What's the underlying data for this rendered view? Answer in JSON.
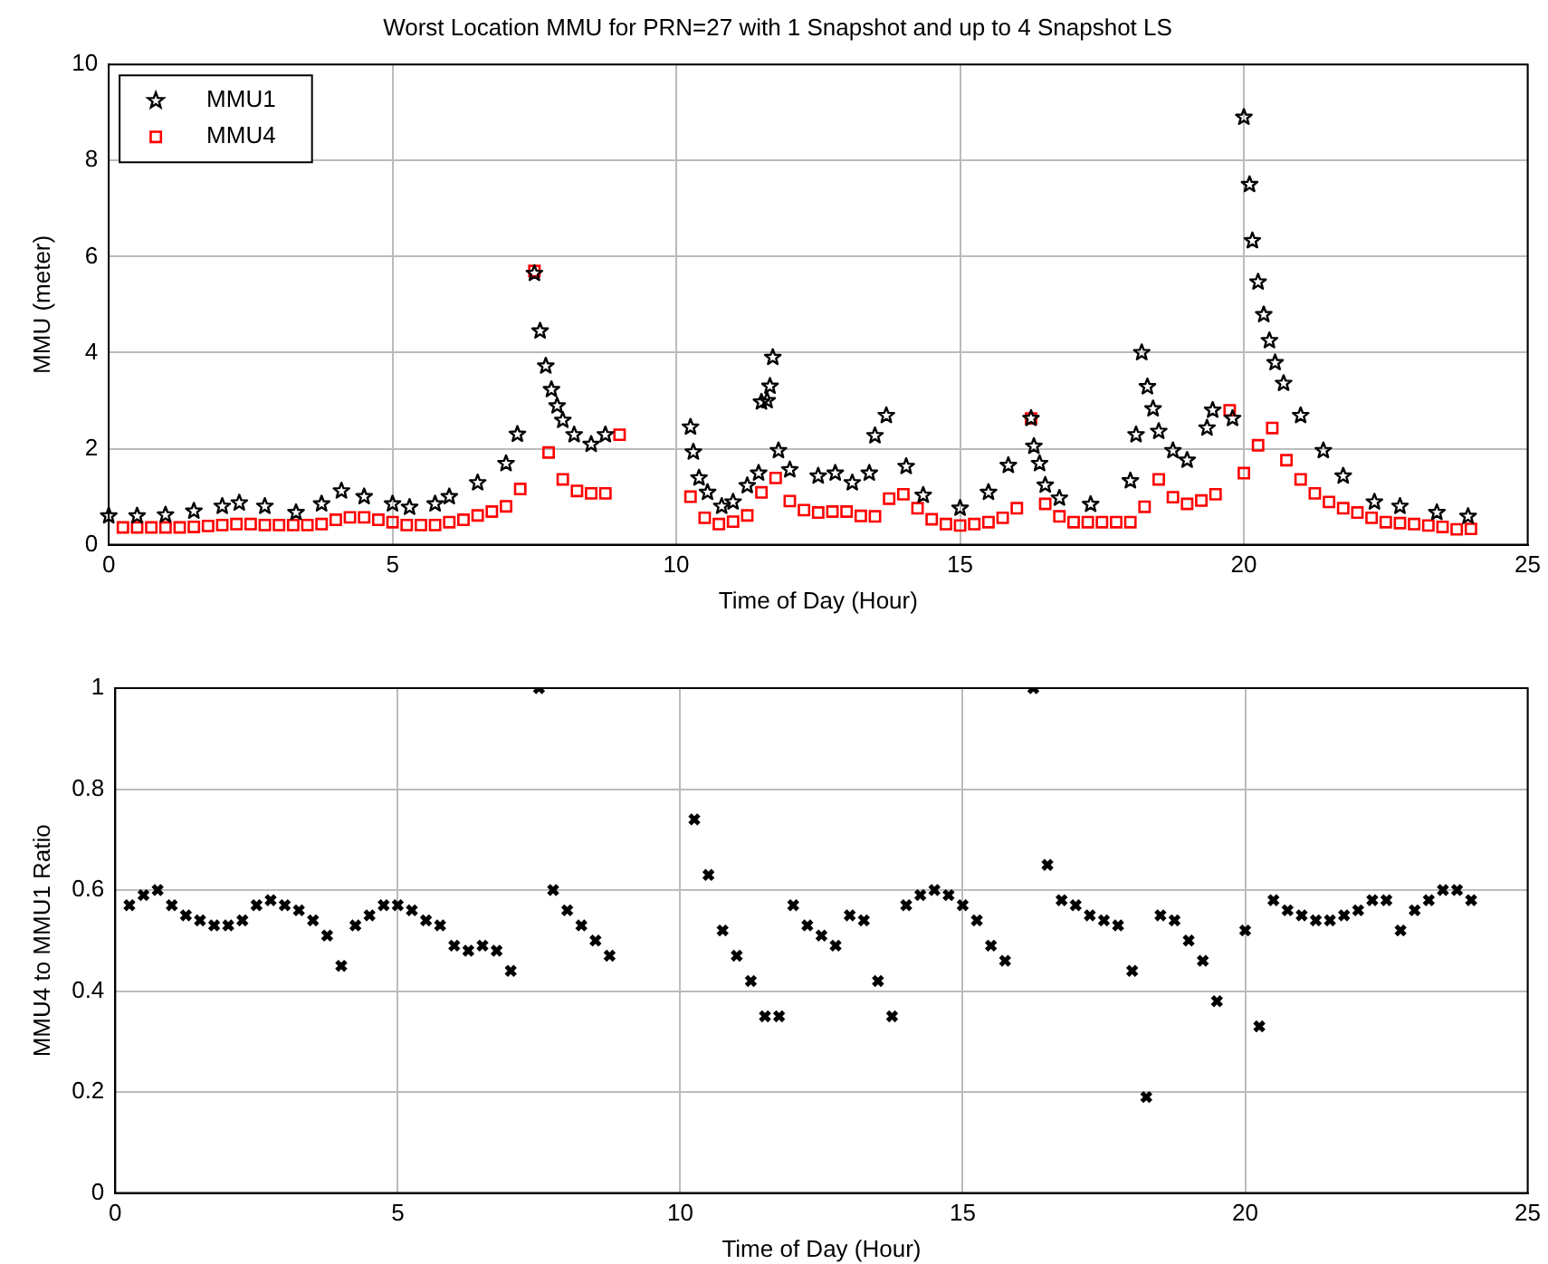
{
  "chart_data": [
    {
      "type": "scatter",
      "title": "Worst Location MMU for PRN=27 with 1 Snapshot and up to 4 Snapshot LS",
      "xlabel": "Time of Day (Hour)",
      "ylabel": "MMU (meter)",
      "xlim": [
        0,
        25
      ],
      "xticks": [
        0,
        5,
        10,
        15,
        20,
        25
      ],
      "ylim": [
        0,
        10
      ],
      "yticks": [
        0,
        2,
        4,
        6,
        8,
        10
      ],
      "grid": true,
      "legend": "top left",
      "series": [
        {
          "name": "MMU1",
          "color": "#000000",
          "marker": "star",
          "x": [
            0,
            0.5,
            1,
            1.5,
            2,
            2.3,
            2.75,
            3.3,
            3.75,
            4.1,
            4.5,
            5,
            5.3,
            5.75,
            6,
            6.5,
            7,
            7.2,
            7.5,
            7.6,
            7.7,
            7.8,
            7.9,
            8,
            8.2,
            8.5,
            8.75,
            10.25,
            10.3,
            10.4,
            10.55,
            10.8,
            11,
            11.25,
            11.45,
            11.5,
            11.6,
            11.65,
            11.7,
            11.8,
            12,
            12.5,
            12.8,
            13.1,
            13.4,
            13.5,
            13.7,
            14.05,
            14.35,
            15,
            15.5,
            15.85,
            16.25,
            16.3,
            16.4,
            16.5,
            16.75,
            17.3,
            18,
            18.1,
            18.2,
            18.3,
            18.4,
            18.5,
            18.75,
            19,
            19.35,
            19.45,
            19.8,
            20,
            20.1,
            20.15,
            20.25,
            20.35,
            20.45,
            20.55,
            20.7,
            21,
            21.4,
            21.75,
            22.3,
            22.75,
            23.4,
            23.95
          ],
          "values": [
            0.6,
            0.6,
            0.62,
            0.7,
            0.8,
            0.87,
            0.8,
            0.67,
            0.85,
            1.12,
            1.0,
            0.85,
            0.78,
            0.85,
            1.0,
            1.29,
            1.69,
            2.3,
            5.65,
            4.45,
            3.72,
            3.23,
            2.89,
            2.59,
            2.29,
            2.09,
            2.29,
            2.45,
            1.93,
            1.39,
            1.09,
            0.8,
            0.89,
            1.23,
            1.49,
            2.97,
            3.0,
            3.3,
            3.9,
            1.96,
            1.56,
            1.43,
            1.49,
            1.29,
            1.49,
            2.27,
            2.69,
            1.63,
            1.03,
            0.76,
            1.09,
            1.65,
            2.63,
            2.05,
            1.69,
            1.24,
            0.97,
            0.84,
            1.33,
            2.29,
            4.0,
            3.29,
            2.83,
            2.36,
            1.96,
            1.76,
            2.43,
            2.8,
            2.63,
            8.9,
            7.5,
            6.33,
            5.47,
            4.79,
            4.25,
            3.79,
            3.36,
            2.69,
            1.96,
            1.43,
            0.89,
            0.8,
            0.67,
            0.59
          ]
        },
        {
          "name": "MMU4",
          "color": "#ff0000",
          "marker": "square",
          "x": [
            0.25,
            0.5,
            0.75,
            1,
            1.25,
            1.5,
            1.75,
            2,
            2.25,
            2.5,
            2.75,
            3,
            3.25,
            3.5,
            3.75,
            4,
            4.25,
            4.5,
            4.75,
            5,
            5.25,
            5.5,
            5.75,
            6,
            6.25,
            6.5,
            6.75,
            7,
            7.25,
            7.5,
            7.75,
            8,
            8.25,
            8.5,
            8.75,
            9,
            10.25,
            10.5,
            10.75,
            11,
            11.25,
            11.5,
            11.75,
            12,
            12.25,
            12.5,
            12.75,
            13,
            13.25,
            13.5,
            13.75,
            14,
            14.25,
            14.5,
            14.75,
            15,
            15.25,
            15.5,
            15.75,
            16,
            16.25,
            16.5,
            16.75,
            17,
            17.25,
            17.5,
            17.75,
            18,
            18.25,
            18.5,
            18.75,
            19,
            19.25,
            19.5,
            19.75,
            20,
            20.25,
            20.5,
            20.75,
            21,
            21.25,
            21.5,
            21.75,
            22,
            22.25,
            22.5,
            22.75,
            23,
            23.25,
            23.5,
            23.75,
            24
          ],
          "values": [
            0.36,
            0.36,
            0.36,
            0.36,
            0.36,
            0.37,
            0.39,
            0.41,
            0.43,
            0.43,
            0.41,
            0.41,
            0.41,
            0.41,
            0.43,
            0.52,
            0.57,
            0.57,
            0.52,
            0.47,
            0.41,
            0.41,
            0.41,
            0.47,
            0.52,
            0.61,
            0.69,
            0.8,
            1.16,
            5.7,
            1.92,
            1.36,
            1.12,
            1.07,
            1.07,
            2.29,
            1.0,
            0.56,
            0.43,
            0.48,
            0.61,
            1.09,
            1.39,
            0.91,
            0.72,
            0.67,
            0.69,
            0.69,
            0.6,
            0.59,
            0.96,
            1.05,
            0.76,
            0.53,
            0.43,
            0.4,
            0.43,
            0.47,
            0.56,
            0.76,
            2.63,
            0.85,
            0.59,
            0.47,
            0.47,
            0.47,
            0.47,
            0.47,
            0.79,
            1.36,
            0.99,
            0.85,
            0.92,
            1.05,
            2.8,
            1.49,
            2.07,
            2.43,
            1.76,
            1.36,
            1.07,
            0.89,
            0.76,
            0.67,
            0.56,
            0.47,
            0.45,
            0.43,
            0.4,
            0.37,
            0.32,
            0.33
          ]
        }
      ]
    },
    {
      "type": "scatter",
      "xlabel": "Time of Day (Hour)",
      "ylabel": "MMU4 to MMU1 Ratio",
      "xlim": [
        0,
        25
      ],
      "xticks": [
        0,
        5,
        10,
        15,
        20,
        25
      ],
      "ylim": [
        0,
        1
      ],
      "yticks": [
        0,
        0.2,
        0.4,
        0.6,
        0.8,
        1
      ],
      "grid": true,
      "series": [
        {
          "color": "#000000",
          "marker": "cross",
          "x": [
            0.25,
            0.5,
            0.75,
            1,
            1.25,
            1.5,
            1.75,
            2,
            2.25,
            2.5,
            2.75,
            3,
            3.25,
            3.5,
            3.75,
            4,
            4.25,
            4.5,
            4.75,
            5,
            5.25,
            5.5,
            5.75,
            6,
            6.25,
            6.5,
            6.75,
            7,
            7.5,
            7.75,
            8,
            8.25,
            8.5,
            8.75,
            10.25,
            10.5,
            10.75,
            11,
            11.25,
            11.5,
            11.75,
            12,
            12.25,
            12.5,
            12.75,
            13,
            13.25,
            13.5,
            13.75,
            14,
            14.25,
            14.5,
            14.75,
            15,
            15.25,
            15.5,
            15.75,
            16.25,
            16.5,
            16.75,
            17,
            17.25,
            17.5,
            17.75,
            18,
            18.25,
            18.5,
            18.75,
            19,
            19.25,
            19.5,
            20,
            20.25,
            20.5,
            20.75,
            21,
            21.25,
            21.5,
            21.75,
            22,
            22.25,
            22.5,
            22.75,
            23,
            23.25,
            23.5,
            23.75,
            24
          ],
          "values": [
            0.57,
            0.59,
            0.6,
            0.57,
            0.55,
            0.54,
            0.53,
            0.53,
            0.54,
            0.57,
            0.58,
            0.57,
            0.56,
            0.54,
            0.51,
            0.45,
            0.53,
            0.55,
            0.57,
            0.57,
            0.56,
            0.54,
            0.53,
            0.49,
            0.48,
            0.49,
            0.48,
            0.44,
            1.0,
            0.6,
            0.56,
            0.53,
            0.5,
            0.47,
            0.74,
            0.63,
            0.52,
            0.47,
            0.42,
            0.35,
            0.35,
            0.57,
            0.53,
            0.51,
            0.49,
            0.55,
            0.54,
            0.42,
            0.35,
            0.57,
            0.59,
            0.6,
            0.59,
            0.57,
            0.54,
            0.49,
            0.46,
            1.0,
            0.65,
            0.58,
            0.57,
            0.55,
            0.54,
            0.53,
            0.44,
            0.19,
            0.55,
            0.54,
            0.5,
            0.46,
            0.38,
            0.52,
            0.33,
            0.58,
            0.56,
            0.55,
            0.54,
            0.54,
            0.55,
            0.56,
            0.58,
            0.58,
            0.52,
            0.56,
            0.58,
            0.6,
            0.6,
            0.58
          ]
        }
      ]
    }
  ]
}
